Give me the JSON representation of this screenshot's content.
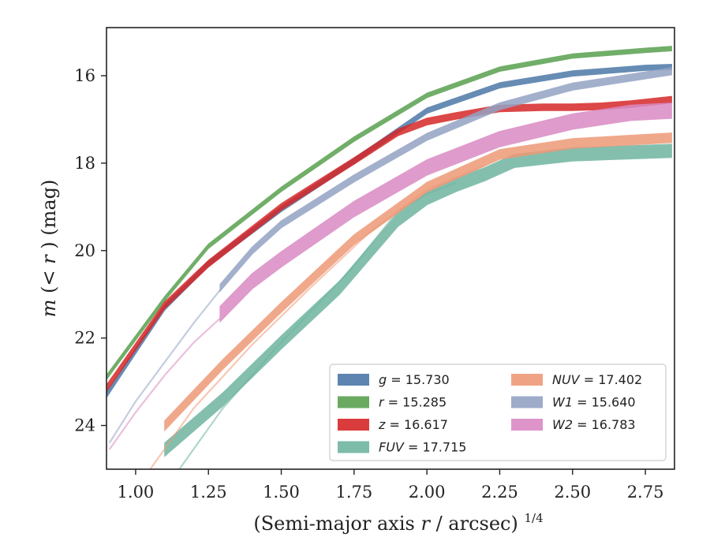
{
  "chart_data": {
    "type": "line",
    "xlabel_main": "(Semi-major axis",
    "xlabel_var": "r",
    "xlabel_unit": " / arcsec)",
    "xlabel_exp": "1/4",
    "ylabel_m": "m",
    "ylabel_mid": "(< ",
    "ylabel_r": "r",
    "ylabel_tail": ") (mag)",
    "xlim": [
      0.9,
      2.85
    ],
    "ylim": [
      25.0,
      14.9
    ],
    "y_inverted": true,
    "x_ticks": [
      1.0,
      1.25,
      1.5,
      1.75,
      2.0,
      2.25,
      2.5,
      2.75
    ],
    "x_tick_labels": [
      "1.00",
      "1.25",
      "1.50",
      "1.75",
      "2.00",
      "2.25",
      "2.50",
      "2.75"
    ],
    "y_ticks": [
      16,
      18,
      20,
      22,
      24
    ],
    "y_tick_labels": [
      "16",
      "18",
      "20",
      "22",
      "24"
    ],
    "grid": false,
    "legend_position": "lower-right",
    "series": [
      {
        "name": "g",
        "mag_label": "15.730",
        "color": "#4c78a8",
        "x": [
          0.9,
          1.0,
          1.1,
          1.25,
          1.5,
          1.75,
          2.0,
          2.25,
          2.5,
          2.75,
          2.84
        ],
        "y": [
          23.3,
          22.3,
          21.3,
          20.3,
          19.05,
          17.95,
          16.8,
          16.22,
          15.95,
          15.82,
          15.8
        ],
        "width": 0.12,
        "ghost": {
          "x": [],
          "y": []
        }
      },
      {
        "name": "r",
        "mag_label": "15.285",
        "color": "#59a14f",
        "x": [
          0.9,
          1.0,
          1.1,
          1.25,
          1.5,
          1.75,
          2.0,
          2.25,
          2.5,
          2.75,
          2.84
        ],
        "y": [
          22.9,
          22.0,
          21.1,
          19.9,
          18.6,
          17.45,
          16.45,
          15.85,
          15.55,
          15.42,
          15.38
        ],
        "width": 0.1,
        "ghost": {
          "x": [],
          "y": []
        }
      },
      {
        "name": "z",
        "mag_label": "16.617",
        "color": "#d62728",
        "x": [
          0.9,
          1.0,
          1.1,
          1.25,
          1.5,
          1.75,
          1.9,
          2.0,
          2.1,
          2.25,
          2.4,
          2.5,
          2.6,
          2.7,
          2.84
        ],
        "y": [
          23.15,
          22.2,
          21.25,
          20.3,
          19.0,
          17.95,
          17.3,
          17.05,
          16.92,
          16.75,
          16.72,
          16.72,
          16.7,
          16.65,
          16.55
        ],
        "width": 0.15,
        "ghost": {
          "x": [],
          "y": []
        }
      },
      {
        "name": "FUV",
        "mag_label": "17.715",
        "color": "#6fb5a0",
        "x": [
          1.1,
          1.3,
          1.5,
          1.7,
          1.9,
          2.0,
          2.1,
          2.2,
          2.3,
          2.5,
          2.84
        ],
        "y": [
          24.55,
          23.4,
          22.1,
          20.85,
          19.3,
          18.8,
          18.5,
          18.25,
          17.95,
          17.8,
          17.72
        ],
        "width": 0.3,
        "ghost": {
          "x": [
            1.15,
            1.3,
            1.5,
            1.73,
            1.9,
            2.0,
            2.1
          ],
          "y": [
            25.0,
            23.6,
            22.1,
            20.5,
            19.1,
            18.7,
            18.45
          ]
        }
      },
      {
        "name": "NUV",
        "mag_label": "17.402",
        "color": "#ee9977",
        "x": [
          1.1,
          1.3,
          1.5,
          1.75,
          2.0,
          2.25,
          2.5,
          2.84
        ],
        "y": [
          24.0,
          22.6,
          21.3,
          19.75,
          18.55,
          17.8,
          17.55,
          17.42
        ],
        "width": 0.22,
        "ghost": {
          "x": [
            1.05,
            1.2,
            1.4,
            1.6,
            1.8,
            2.0,
            2.2
          ],
          "y": [
            25.0,
            23.6,
            22.15,
            20.85,
            19.6,
            18.6,
            18.05
          ]
        }
      },
      {
        "name": "W1",
        "mag_label": "15.640",
        "color": "#94a3c4",
        "x": [
          1.29,
          1.4,
          1.5,
          1.75,
          2.0,
          2.25,
          2.5,
          2.84
        ],
        "y": [
          20.85,
          20.0,
          19.4,
          18.35,
          17.4,
          16.7,
          16.25,
          15.9
        ],
        "width": 0.16,
        "ghost": {
          "x": [
            0.91,
            1.0,
            1.1,
            1.2,
            1.29
          ],
          "y": [
            24.4,
            23.45,
            22.55,
            21.65,
            20.9
          ]
        }
      },
      {
        "name": "W2",
        "mag_label": "16.783",
        "color": "#d98ac3",
        "x": [
          1.29,
          1.4,
          1.5,
          1.75,
          2.0,
          2.25,
          2.5,
          2.7,
          2.84
        ],
        "y": [
          21.45,
          20.7,
          20.2,
          19.05,
          18.1,
          17.45,
          17.05,
          16.85,
          16.8
        ],
        "width": 0.35,
        "ghost": {
          "x": [
            0.91,
            1.0,
            1.1,
            1.2,
            1.29
          ],
          "y": [
            24.55,
            23.7,
            22.85,
            22.1,
            21.55
          ]
        }
      }
    ]
  }
}
